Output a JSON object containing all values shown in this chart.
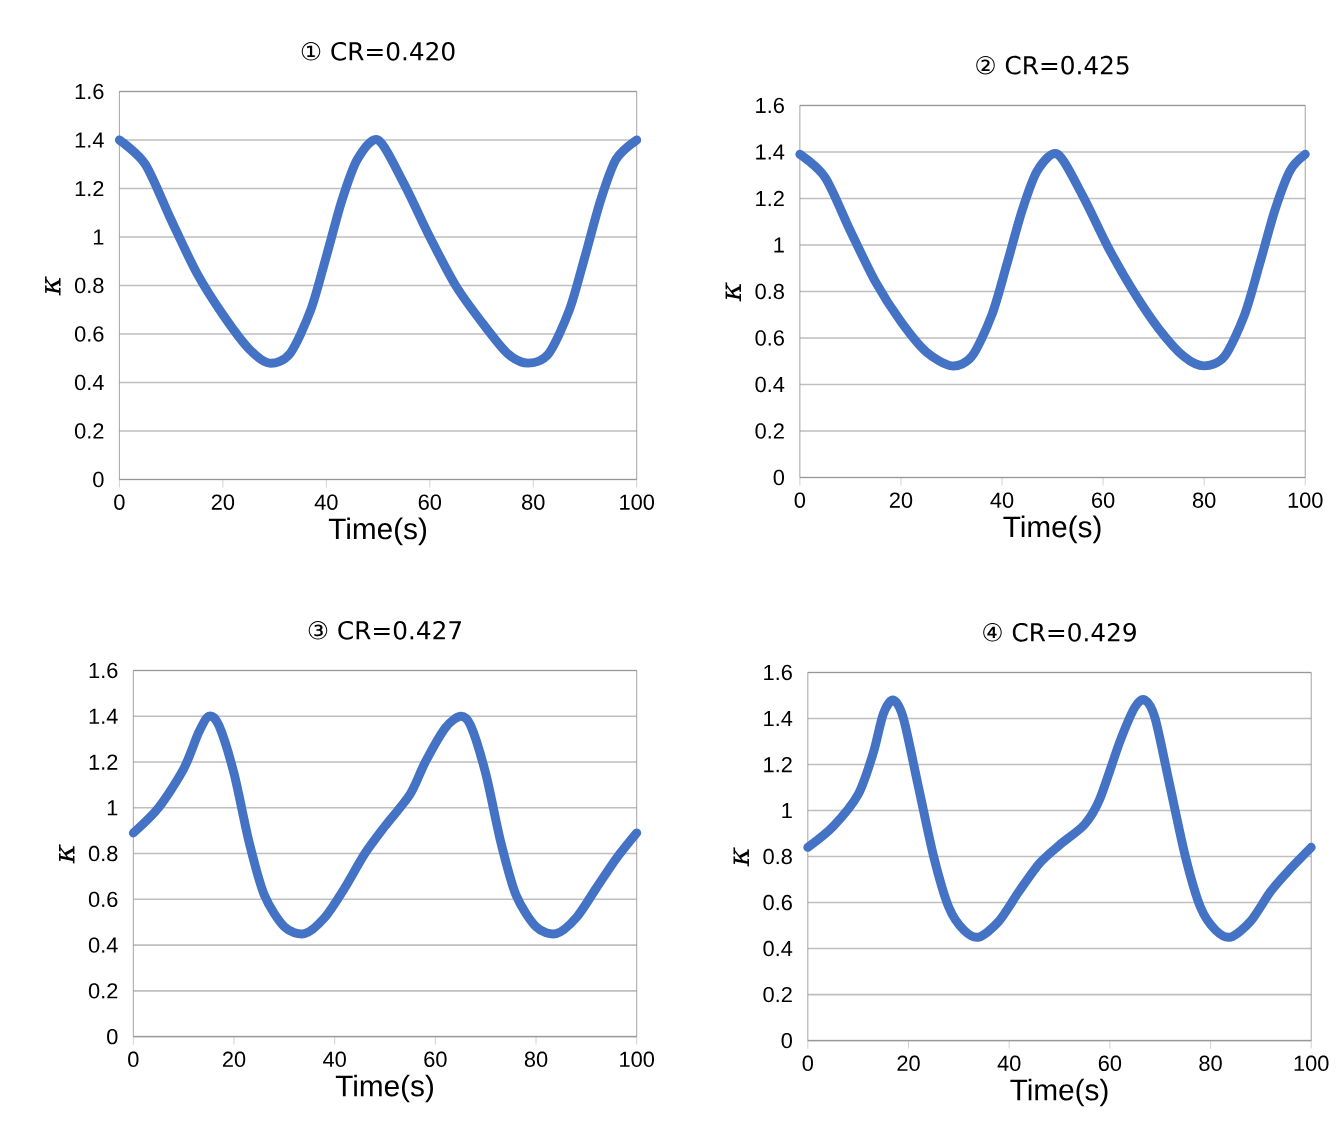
{
  "chart_data": [
    {
      "type": "line",
      "title": "① CR=0.420",
      "xlabel": "Time(s)",
      "ylabel": "κ",
      "xlim": [
        0,
        100
      ],
      "ylim": [
        0,
        1.6
      ],
      "xticks": [
        0,
        20,
        40,
        60,
        80,
        100
      ],
      "yticks": [
        0,
        0.2,
        0.4,
        0.6,
        0.8,
        1,
        1.2,
        1.4,
        1.6
      ],
      "grid": "y",
      "series": [
        {
          "color": "#4472c4",
          "x": [
            0,
            5,
            10,
            15,
            20,
            25,
            29,
            33,
            37,
            40,
            43,
            46,
            50,
            55,
            60,
            65,
            70,
            75,
            79,
            83,
            87,
            90,
            93,
            96,
            100
          ],
          "values": [
            1.4,
            1.3,
            1.07,
            0.85,
            0.68,
            0.54,
            0.48,
            0.52,
            0.7,
            0.92,
            1.15,
            1.32,
            1.4,
            1.22,
            1.0,
            0.8,
            0.65,
            0.52,
            0.48,
            0.52,
            0.7,
            0.92,
            1.15,
            1.32,
            1.4
          ]
        }
      ]
    },
    {
      "type": "line",
      "title": "② CR=0.425",
      "xlabel": "Time(s)",
      "ylabel": "κ",
      "xlim": [
        0,
        100
      ],
      "ylim": [
        0,
        1.6
      ],
      "xticks": [
        0,
        20,
        40,
        60,
        80,
        100
      ],
      "yticks": [
        0,
        0.2,
        0.4,
        0.6,
        0.8,
        1,
        1.2,
        1.4,
        1.6
      ],
      "grid": "y",
      "series": [
        {
          "color": "#4472c4",
          "x": [
            0,
            5,
            10,
            15,
            20,
            25,
            30,
            34,
            38,
            41,
            44,
            47,
            51,
            56,
            61,
            66,
            71,
            76,
            80,
            84,
            88,
            91,
            94,
            97,
            100
          ],
          "values": [
            1.39,
            1.29,
            1.06,
            0.84,
            0.67,
            0.54,
            0.48,
            0.52,
            0.7,
            0.92,
            1.15,
            1.32,
            1.39,
            1.21,
            0.99,
            0.8,
            0.64,
            0.52,
            0.48,
            0.52,
            0.7,
            0.92,
            1.15,
            1.32,
            1.39
          ]
        }
      ]
    },
    {
      "type": "line",
      "title": "③ CR=0.427",
      "xlabel": "Time(s)",
      "ylabel": "κ",
      "xlim": [
        0,
        100
      ],
      "ylim": [
        0,
        1.6
      ],
      "xticks": [
        0,
        20,
        40,
        60,
        80,
        100
      ],
      "yticks": [
        0,
        0.2,
        0.4,
        0.6,
        0.8,
        1,
        1.2,
        1.4,
        1.6
      ],
      "grid": "y",
      "series": [
        {
          "color": "#4472c4",
          "x": [
            0,
            5,
            10,
            13,
            15,
            17,
            20,
            23,
            26,
            30,
            34,
            38,
            42,
            46,
            50,
            55,
            58,
            62,
            65,
            67,
            70,
            73,
            76,
            80,
            84,
            88,
            92,
            96,
            100
          ],
          "values": [
            0.89,
            1.0,
            1.17,
            1.33,
            1.4,
            1.36,
            1.15,
            0.85,
            0.62,
            0.48,
            0.45,
            0.52,
            0.65,
            0.8,
            0.92,
            1.06,
            1.2,
            1.35,
            1.4,
            1.36,
            1.15,
            0.85,
            0.62,
            0.48,
            0.45,
            0.52,
            0.65,
            0.78,
            0.89
          ]
        }
      ]
    },
    {
      "type": "line",
      "title": "④ CR=0.429",
      "xlabel": "Time(s)",
      "ylabel": "κ",
      "xlim": [
        0,
        100
      ],
      "ylim": [
        0,
        1.6
      ],
      "xticks": [
        0,
        20,
        40,
        60,
        80,
        100
      ],
      "yticks": [
        0,
        0.2,
        0.4,
        0.6,
        0.8,
        1,
        1.2,
        1.4,
        1.6
      ],
      "grid": "y",
      "series": [
        {
          "color": "#4472c4",
          "x": [
            0,
            5,
            10,
            13,
            15,
            17,
            19,
            22,
            25,
            28,
            31,
            34,
            38,
            42,
            46,
            50,
            55,
            58,
            62,
            65,
            67,
            69,
            72,
            75,
            78,
            81,
            84,
            88,
            92,
            96,
            100
          ],
          "values": [
            0.84,
            0.93,
            1.07,
            1.25,
            1.42,
            1.48,
            1.4,
            1.1,
            0.8,
            0.58,
            0.48,
            0.45,
            0.52,
            0.65,
            0.77,
            0.85,
            0.94,
            1.05,
            1.3,
            1.45,
            1.48,
            1.4,
            1.1,
            0.8,
            0.58,
            0.48,
            0.45,
            0.52,
            0.65,
            0.75,
            0.84
          ]
        }
      ]
    }
  ]
}
